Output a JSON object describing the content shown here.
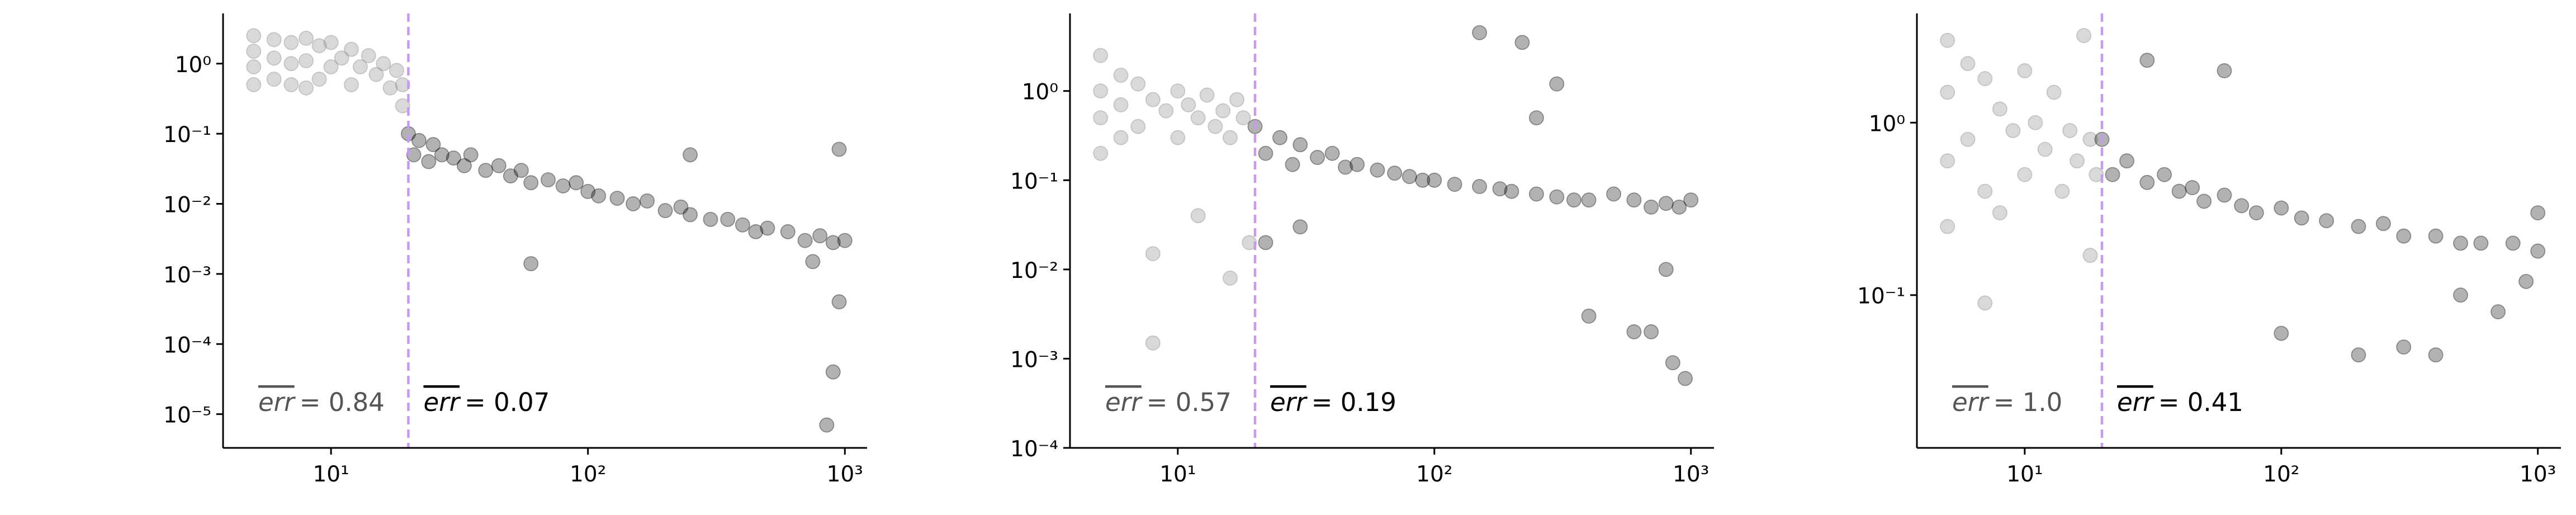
{
  "chart_data": [
    {
      "type": "scatter",
      "xscale": "log",
      "yscale": "log",
      "xlim": [
        3.8,
        1220
      ],
      "ylim": [
        3.3e-06,
        5.2
      ],
      "xticks": [
        {
          "value": 10,
          "label": "10¹"
        },
        {
          "value": 100,
          "label": "10²"
        },
        {
          "value": 1000,
          "label": "10³"
        }
      ],
      "yticks": [
        {
          "value": 1,
          "label": "10⁰"
        },
        {
          "value": 0.1,
          "label": "10⁻¹"
        },
        {
          "value": 0.01,
          "label": "10⁻²"
        },
        {
          "value": 0.001,
          "label": "10⁻³"
        },
        {
          "value": 0.0001,
          "label": "10⁻⁴"
        },
        {
          "value": 1e-05,
          "label": "10⁻⁵"
        }
      ],
      "threshold": 20,
      "threshold_color": "#c49bf0",
      "series": [
        {
          "color": "#8f918f",
          "alpha": 0.35,
          "x": [
            5,
            5,
            5,
            5,
            6,
            6,
            6,
            7,
            7,
            7,
            8,
            8,
            8,
            9,
            9,
            10,
            10,
            11,
            12,
            12,
            13,
            14,
            15,
            16,
            17,
            18,
            19,
            19
          ],
          "values": [
            2.5,
            1.5,
            0.9,
            0.5,
            2.2,
            1.2,
            0.6,
            2.0,
            1.0,
            0.5,
            2.3,
            1.1,
            0.45,
            1.8,
            0.6,
            2.0,
            0.9,
            1.2,
            1.6,
            0.5,
            0.9,
            1.3,
            0.7,
            1.0,
            0.45,
            0.8,
            0.5,
            0.25
          ]
        },
        {
          "color": "#000000",
          "alpha": 0.3,
          "x": [
            20,
            21,
            22,
            24,
            25,
            27,
            30,
            33,
            35,
            40,
            45,
            50,
            55,
            60,
            70,
            80,
            90,
            100,
            110,
            130,
            150,
            170,
            200,
            230,
            250,
            300,
            350,
            400,
            450,
            500,
            600,
            700,
            800,
            900,
            1000,
            950,
            60,
            250,
            900,
            850,
            950,
            750
          ],
          "values": [
            0.1,
            0.05,
            0.08,
            0.04,
            0.07,
            0.05,
            0.045,
            0.035,
            0.05,
            0.03,
            0.035,
            0.025,
            0.03,
            0.02,
            0.022,
            0.018,
            0.02,
            0.015,
            0.013,
            0.012,
            0.01,
            0.011,
            0.008,
            0.009,
            0.007,
            0.006,
            0.006,
            0.005,
            0.004,
            0.0045,
            0.004,
            0.003,
            0.0035,
            0.0028,
            0.003,
            0.06,
            0.0014,
            0.05,
            4e-05,
            7e-06,
            0.0004,
            0.0015
          ]
        }
      ],
      "annotations": [
        {
          "symbol": "err",
          "text": "= 0.84",
          "color": "#555555"
        },
        {
          "symbol": "err",
          "text": "= 0.07",
          "color": "#000000"
        }
      ]
    },
    {
      "type": "scatter",
      "xscale": "log",
      "yscale": "log",
      "xlim": [
        3.8,
        1230
      ],
      "ylim": [
        0.0001,
        7.4
      ],
      "xticks": [
        {
          "value": 10,
          "label": "10¹"
        },
        {
          "value": 100,
          "label": "10²"
        },
        {
          "value": 1000,
          "label": "10³"
        }
      ],
      "yticks": [
        {
          "value": 1,
          "label": "10⁰"
        },
        {
          "value": 0.1,
          "label": "10⁻¹"
        },
        {
          "value": 0.01,
          "label": "10⁻²"
        },
        {
          "value": 0.001,
          "label": "10⁻³"
        },
        {
          "value": 0.0001,
          "label": "10⁻⁴"
        }
      ],
      "threshold": 20,
      "threshold_color": "#c49bf0",
      "series": [
        {
          "color": "#8f918f",
          "alpha": 0.35,
          "x": [
            5,
            5,
            5,
            5,
            6,
            6,
            6,
            7,
            7,
            8,
            8,
            9,
            10,
            10,
            11,
            12,
            13,
            14,
            15,
            16,
            17,
            18,
            19,
            8,
            12,
            16
          ],
          "values": [
            2.5,
            1.0,
            0.5,
            0.2,
            1.5,
            0.7,
            0.3,
            1.2,
            0.4,
            0.8,
            0.015,
            0.6,
            1.0,
            0.3,
            0.7,
            0.5,
            0.9,
            0.4,
            0.6,
            0.3,
            0.8,
            0.5,
            0.02,
            0.0015,
            0.04,
            0.008
          ]
        },
        {
          "color": "#000000",
          "alpha": 0.3,
          "x": [
            20,
            22,
            25,
            28,
            30,
            35,
            40,
            45,
            50,
            60,
            70,
            80,
            90,
            100,
            120,
            150,
            180,
            200,
            250,
            300,
            350,
            400,
            500,
            600,
            700,
            800,
            900,
            1000,
            150,
            220,
            250,
            400,
            600,
            700,
            800,
            850,
            950,
            22,
            30,
            300
          ],
          "values": [
            0.4,
            0.2,
            0.3,
            0.15,
            0.25,
            0.18,
            0.2,
            0.14,
            0.15,
            0.13,
            0.12,
            0.11,
            0.1,
            0.1,
            0.09,
            0.085,
            0.08,
            0.075,
            0.07,
            0.065,
            0.06,
            0.06,
            0.07,
            0.06,
            0.05,
            0.055,
            0.05,
            0.06,
            4.5,
            3.5,
            0.5,
            0.003,
            0.002,
            0.002,
            0.01,
            0.0009,
            0.0006,
            0.02,
            0.03,
            1.2
          ]
        }
      ],
      "annotations": [
        {
          "symbol": "err",
          "text": "= 0.57",
          "color": "#555555"
        },
        {
          "symbol": "err",
          "text": "= 0.19",
          "color": "#000000"
        }
      ]
    },
    {
      "type": "scatter",
      "xscale": "log",
      "yscale": "log",
      "xlim": [
        3.8,
        1230
      ],
      "ylim": [
        0.013,
        4.3
      ],
      "xticks": [
        {
          "value": 10,
          "label": "10¹"
        },
        {
          "value": 100,
          "label": "10²"
        },
        {
          "value": 1000,
          "label": "10³"
        }
      ],
      "yticks": [
        {
          "value": 1,
          "label": "10⁰"
        },
        {
          "value": 0.1,
          "label": "10⁻¹"
        }
      ],
      "threshold": 20,
      "threshold_color": "#c49bf0",
      "series": [
        {
          "color": "#8f918f",
          "alpha": 0.35,
          "x": [
            5,
            5,
            5,
            5,
            6,
            6,
            7,
            7,
            8,
            8,
            9,
            10,
            10,
            11,
            12,
            13,
            14,
            15,
            16,
            17,
            18,
            19,
            7,
            18
          ],
          "values": [
            3,
            1.5,
            0.6,
            0.25,
            2.2,
            0.8,
            1.8,
            0.4,
            1.2,
            0.3,
            0.9,
            2.0,
            0.5,
            1.0,
            0.7,
            1.5,
            0.4,
            0.9,
            0.6,
            3.2,
            0.8,
            0.5,
            0.09,
            0.17
          ]
        },
        {
          "color": "#000000",
          "alpha": 0.3,
          "x": [
            20,
            22,
            25,
            30,
            35,
            40,
            45,
            50,
            60,
            70,
            80,
            100,
            120,
            150,
            200,
            250,
            300,
            400,
            500,
            600,
            800,
            1000,
            30,
            60,
            100,
            200,
            300,
            400,
            500,
            700,
            900,
            1000
          ],
          "values": [
            0.8,
            0.5,
            0.6,
            0.45,
            0.5,
            0.4,
            0.42,
            0.35,
            0.38,
            0.33,
            0.3,
            0.32,
            0.28,
            0.27,
            0.25,
            0.26,
            0.22,
            0.22,
            0.2,
            0.2,
            0.2,
            0.18,
            2.3,
            2.0,
            0.06,
            0.045,
            0.05,
            0.045,
            0.1,
            0.08,
            0.12,
            0.3
          ]
        }
      ],
      "annotations": [
        {
          "symbol": "err",
          "text": "= 1.0",
          "color": "#555555"
        },
        {
          "symbol": "err",
          "text": "= 0.41",
          "color": "#000000"
        }
      ]
    }
  ]
}
